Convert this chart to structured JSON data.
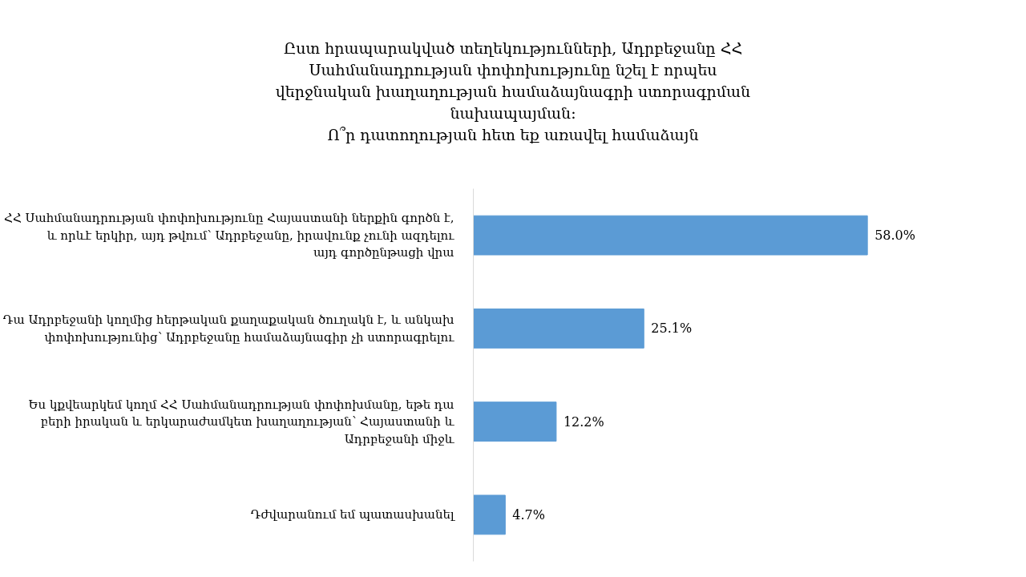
{
  "chart_data": {
    "type": "bar",
    "orientation": "horizontal",
    "title": "Ըստ հրապարակված տեղեկությունների, Ադրբեջանը ՀՀ Սահմանադրության փոփոխությունը նշել է որպես վերջնական խաղաղության համաձայնագրի ստորագրման նախապայման։",
    "subtitle": "Ո՞ր դատողության հետ եք առավել համաձայն",
    "categories": [
      "ՀՀ Սահմանադրության փոփոխությունը Հայաստանի ներքին գործն է, և որևէ երկիր, այդ թվում՝ Ադրբեջանը, իրավունք չունի ազդելու այդ գործընթացի վրա",
      "Դա Ադրբեջանի կողմից հերթական քաղաքական ծուղակն է, և անկախ փոփոխությունից՝ Ադրբեջանը համաձայնագիր չի ստորագրելու",
      "Ես կքվեարկեմ կողմ ՀՀ Սահմանադրության փոփոխմանը, եթե դա բերի իրական և երկարաժամկետ խաղաղության՝ Հայաստանի և Ադրբեջանի միջև",
      "Դժվարանում եմ պատասխանել"
    ],
    "values": [
      58.0,
      25.1,
      12.2,
      4.7
    ],
    "value_labels": [
      "58.0%",
      "25.1%",
      "12.2%",
      "4.7%"
    ],
    "color": "#5b9bd5",
    "tick_labels": "y"
  }
}
